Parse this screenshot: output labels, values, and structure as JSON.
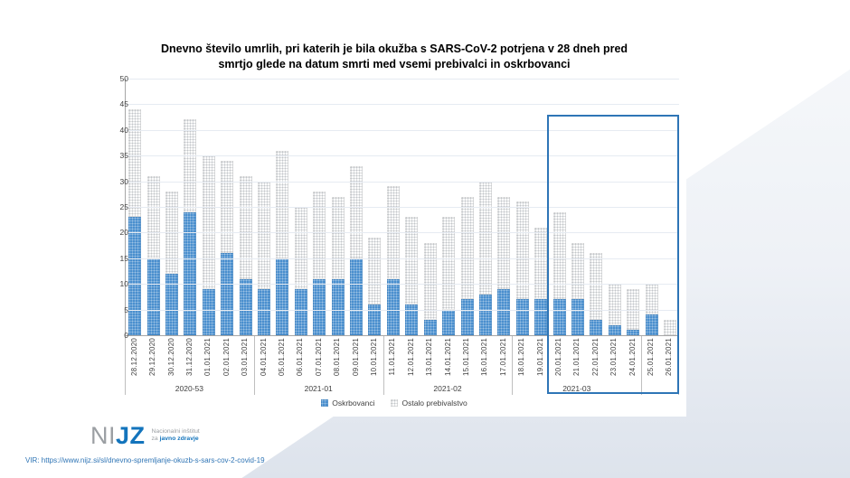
{
  "title": {
    "lines": [
      "Dnevno število umrlih, pri katerih je bila okužba s SARS-CoV-2 potrjena v 28 dneh pred",
      "smrtjo glede na datum smrti med vsemi prebivalci in oskrbovanci"
    ]
  },
  "chart_data": {
    "type": "bar",
    "stacked": true,
    "categories": [
      "28.12.2020",
      "29.12.2020",
      "30.12.2020",
      "31.12.2020",
      "01.01.2021",
      "02.01.2021",
      "03.01.2021",
      "04.01.2021",
      "05.01.2021",
      "06.01.2021",
      "07.01.2021",
      "08.01.2021",
      "09.01.2021",
      "10.01.2021",
      "11.01.2021",
      "12.01.2021",
      "13.01.2021",
      "14.01.2021",
      "15.01.2021",
      "16.01.2021",
      "17.01.2021",
      "18.01.2021",
      "19.01.2021",
      "20.01.2021",
      "21.01.2021",
      "22.01.2021",
      "23.01.2021",
      "24.01.2021",
      "25.01.2021",
      "26.01.2021"
    ],
    "series": [
      {
        "name": "Oskrbovanci",
        "color": "#4a8fce",
        "values": [
          23,
          15,
          12,
          24,
          9,
          16,
          11,
          9,
          15,
          9,
          11,
          11,
          15,
          6,
          11,
          6,
          3,
          5,
          7,
          8,
          9,
          7,
          7,
          7,
          7,
          3,
          2,
          1,
          4,
          0
        ]
      },
      {
        "name": "Ostalo prebivalstvo",
        "color": "#e8e8e8",
        "values": [
          21,
          16,
          16,
          18,
          26,
          18,
          20,
          21,
          21,
          16,
          17,
          16,
          18,
          13,
          18,
          17,
          15,
          18,
          20,
          22,
          18,
          19,
          14,
          17,
          11,
          13,
          8,
          8,
          6,
          3
        ]
      }
    ],
    "totals": [
      44,
      31,
      28,
      42,
      35,
      34,
      31,
      30,
      36,
      25,
      28,
      27,
      33,
      19,
      29,
      23,
      18,
      23,
      27,
      30,
      27,
      26,
      21,
      24,
      18,
      16,
      10,
      9,
      10,
      3
    ],
    "ylim": [
      0,
      50
    ],
    "ytick_step": 5,
    "grid": true,
    "legend_position": "bottom",
    "week_groups": [
      {
        "label": "2020-53",
        "span": 7
      },
      {
        "label": "2021-01",
        "span": 7
      },
      {
        "label": "2021-02",
        "span": 7
      },
      {
        "label": "2021-03",
        "span": 7
      },
      {
        "label": "",
        "span": 2
      }
    ],
    "highlight": {
      "start_category": "20.01.2021",
      "end_category": "26.01.2021",
      "top_value": 43,
      "color": "#2e75b6"
    }
  },
  "logo": {
    "word_gray": "NI",
    "word_blue": "JZ",
    "sub_line1": "Nacionalni inštitut",
    "sub_line2_gray": "za ",
    "sub_line2_blue": "javno zdravje"
  },
  "source": {
    "text": "VIR: https://www.nijz.si/sl/dnevno-spremljanje-okuzb-s-sars-cov-2-covid-19"
  }
}
